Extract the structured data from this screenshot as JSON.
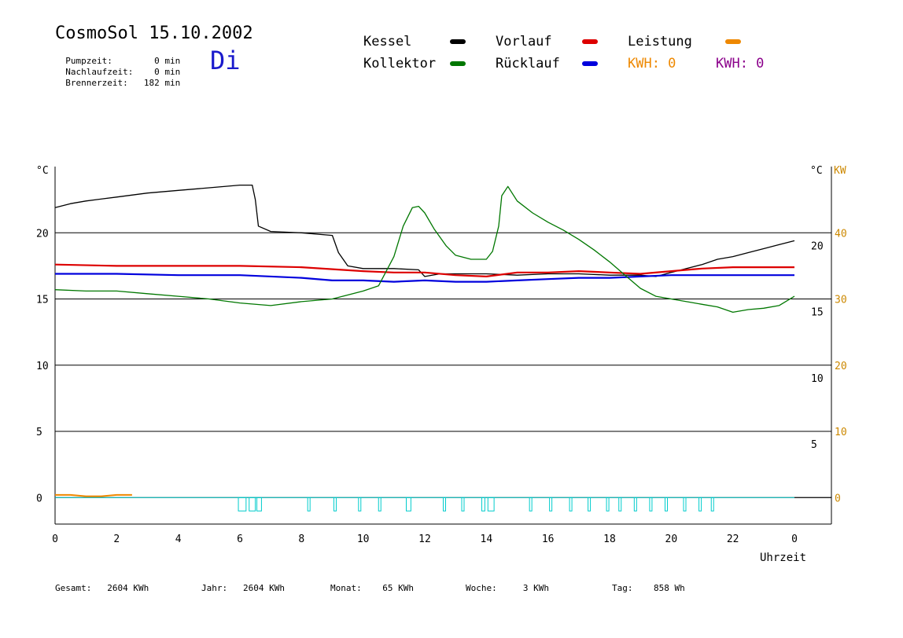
{
  "header": {
    "title": "CosmoSol 15.10.2002",
    "weekday": "Di",
    "stats": [
      {
        "label": "Pumpzeit:",
        "value": "0 min"
      },
      {
        "label": "Nachlaufzeit:",
        "value": "0 min"
      },
      {
        "label": "Brennerzeit:",
        "value": "182 min"
      }
    ]
  },
  "legend": {
    "kessel": "Kessel",
    "kollektor": "Kollektor",
    "vorlauf": "Vorlauf",
    "ruecklauf": "Rücklauf",
    "leistung": "Leistung",
    "kwh1": "KWH: 0",
    "kwh2": "KWH: 0"
  },
  "colors": {
    "kessel": "#000000",
    "kollektor": "#007700",
    "vorlauf": "#dd0000",
    "ruecklauf": "#0000dd",
    "leistung": "#ee8800",
    "kwh2": "#8b008b",
    "pump": "#00cccc",
    "axis_kw": "#cc8800"
  },
  "footer": [
    {
      "label": "Gesamt:",
      "value": "2604 KWh"
    },
    {
      "label": "Jahr:",
      "value": "2604 KWh"
    },
    {
      "label": "Monat:",
      "value": "65 KWh"
    },
    {
      "label": "Woche:",
      "value": "3 KWh"
    },
    {
      "label": "Tag:",
      "value": "858 Wh"
    }
  ],
  "chart_data": {
    "type": "line",
    "xlabel": "Uhrzeit",
    "ylabel_left": "°C",
    "ylabel_right": "°C",
    "ylabel_right2": "KW",
    "xlim": [
      0,
      24
    ],
    "ylim": [
      -2,
      25
    ],
    "ylim_kw": [
      -4,
      50
    ],
    "x_tick_labels": [
      "0",
      "2",
      "4",
      "6",
      "8",
      "10",
      "12",
      "14",
      "16",
      "18",
      "20",
      "22",
      "0"
    ],
    "y_ticks": [
      0,
      5,
      10,
      15,
      20
    ],
    "kw_ticks": [
      0,
      10,
      20,
      30,
      40
    ],
    "grid": "horizontal",
    "series": [
      {
        "name": "Kessel",
        "key": "kessel",
        "x": [
          0,
          0.5,
          1,
          2,
          3,
          4,
          5,
          6,
          6.4,
          6.5,
          6.6,
          7,
          8,
          9,
          9.2,
          9.5,
          10,
          11,
          11.8,
          12,
          12.5,
          13,
          14,
          15,
          16,
          17,
          18,
          19,
          19.5,
          20,
          21,
          21.5,
          22,
          22.5,
          23,
          23.5,
          24
        ],
        "y": [
          21.9,
          22.2,
          22.4,
          22.7,
          23.0,
          23.2,
          23.4,
          23.6,
          23.6,
          22.5,
          20.5,
          20.1,
          20.0,
          19.8,
          18.5,
          17.5,
          17.3,
          17.3,
          17.2,
          16.7,
          16.9,
          16.9,
          16.9,
          16.8,
          16.9,
          16.9,
          16.8,
          16.8,
          16.7,
          17.0,
          17.6,
          18.0,
          18.2,
          18.5,
          18.8,
          19.1,
          19.4
        ]
      },
      {
        "name": "Vorlauf",
        "key": "vorlauf",
        "x": [
          0,
          2,
          4,
          6,
          8,
          10,
          11,
          12,
          13,
          14,
          15,
          16,
          17,
          18,
          19,
          20,
          21,
          22,
          23,
          24
        ],
        "y": [
          17.6,
          17.5,
          17.5,
          17.5,
          17.4,
          17.1,
          17.0,
          17.0,
          16.8,
          16.7,
          17.0,
          17.0,
          17.1,
          17.0,
          16.9,
          17.1,
          17.3,
          17.4,
          17.4,
          17.4
        ]
      },
      {
        "name": "Rücklauf",
        "key": "ruecklauf",
        "x": [
          0,
          2,
          4,
          6,
          8,
          9,
          10,
          11,
          12,
          13,
          14,
          15,
          16,
          17,
          18,
          19,
          20,
          21,
          22,
          23,
          24
        ],
        "y": [
          16.9,
          16.9,
          16.8,
          16.8,
          16.6,
          16.4,
          16.4,
          16.3,
          16.4,
          16.3,
          16.3,
          16.4,
          16.5,
          16.6,
          16.6,
          16.7,
          16.8,
          16.8,
          16.8,
          16.8,
          16.8
        ]
      },
      {
        "name": "Kollektor",
        "key": "kollektor",
        "x": [
          0,
          1,
          2,
          3,
          4,
          5,
          6,
          7,
          8,
          9,
          10,
          10.5,
          11,
          11.3,
          11.6,
          11.8,
          12,
          12.3,
          12.7,
          13,
          13.5,
          14,
          14.2,
          14.4,
          14.5,
          14.7,
          15,
          15.5,
          16,
          16.5,
          17,
          17.5,
          18,
          18.5,
          19,
          19.5,
          20,
          20.5,
          21,
          21.5,
          22,
          22.5,
          23,
          23.5,
          24
        ],
        "y": [
          15.7,
          15.6,
          15.6,
          15.4,
          15.2,
          15.0,
          14.7,
          14.5,
          14.8,
          15.0,
          15.6,
          16.0,
          18.2,
          20.5,
          21.9,
          22.0,
          21.5,
          20.3,
          19.0,
          18.3,
          18.0,
          18.0,
          18.6,
          20.5,
          22.8,
          23.5,
          22.4,
          21.5,
          20.8,
          20.2,
          19.5,
          18.7,
          17.8,
          16.8,
          15.8,
          15.2,
          15.0,
          14.8,
          14.6,
          14.4,
          14.0,
          14.2,
          14.3,
          14.5,
          15.2
        ]
      },
      {
        "name": "Leistung",
        "key": "leistung",
        "x": [
          0,
          0.5,
          1,
          1.5,
          2,
          2.5
        ],
        "y": [
          0.2,
          0.2,
          0.1,
          0.1,
          0.2,
          0.2
        ]
      }
    ],
    "pump_pulses": [
      [
        5.95,
        6.2
      ],
      [
        6.3,
        6.5
      ],
      [
        6.55,
        6.7
      ],
      [
        8.2,
        8.25
      ],
      [
        9.05,
        9.1
      ],
      [
        9.85,
        9.9
      ],
      [
        10.5,
        10.55
      ],
      [
        11.4,
        11.55
      ],
      [
        12.6,
        12.65
      ],
      [
        13.2,
        13.25
      ],
      [
        13.85,
        13.95
      ],
      [
        14.05,
        14.25
      ],
      [
        15.4,
        15.45
      ],
      [
        16.05,
        16.1
      ],
      [
        16.7,
        16.75
      ],
      [
        17.3,
        17.35
      ],
      [
        17.9,
        17.95
      ],
      [
        18.3,
        18.35
      ],
      [
        18.8,
        18.85
      ],
      [
        19.3,
        19.35
      ],
      [
        19.8,
        19.85
      ],
      [
        20.4,
        20.45
      ],
      [
        20.9,
        20.95
      ],
      [
        21.3,
        21.35
      ]
    ]
  }
}
